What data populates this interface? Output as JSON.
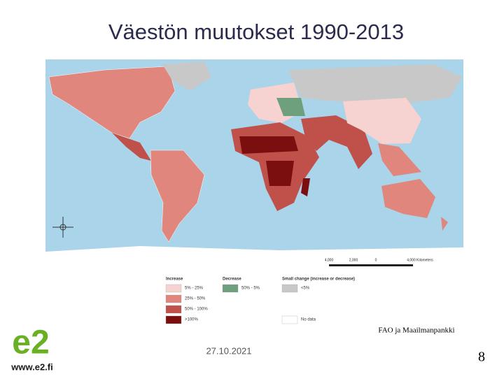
{
  "title": "Väestön muutokset 1990-2013",
  "scale_bar": [
    "4,000",
    "2,000",
    "0",
    "4,000 Kilometers"
  ],
  "legend": {
    "groups": [
      {
        "heading": "Increase",
        "items": [
          {
            "label": "5% - 25%",
            "color": "#f6d2d0"
          },
          {
            "label": "25% - 50%",
            "color": "#e0867c"
          },
          {
            "label": "50% - 100%",
            "color": "#c0504a"
          },
          {
            "label": ">100%",
            "color": "#7b0f10"
          }
        ]
      },
      {
        "heading": "Decrease",
        "items": [
          {
            "label": "50% - 5%",
            "color": "#6fa07d"
          }
        ]
      },
      {
        "heading": "Small change (increase or decrease)",
        "items": [
          {
            "label": "<5%",
            "color": "#c8c8c8"
          }
        ]
      }
    ],
    "no_data": {
      "label": "No data",
      "color": "#ffffff"
    }
  },
  "source": "FAO ja Maailmanpankki",
  "date": "27.10.2021",
  "page_number": "8",
  "logo": {
    "mark": "e2",
    "url": "www.e2.fi"
  }
}
